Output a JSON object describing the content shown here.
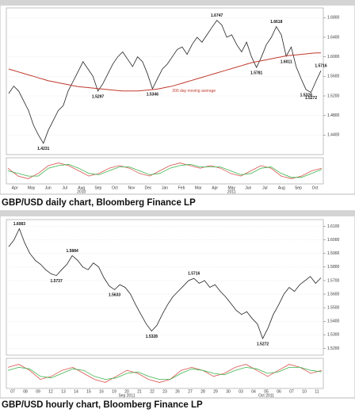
{
  "chart_data": [
    {
      "type": "line",
      "title": "GBP/USD daily chart, Bloomberg Finance LP",
      "xtick_labels": [
        "Apr",
        "May",
        "Jun",
        "Jul",
        "Aug",
        "Sep",
        "Oct",
        "Nov",
        "Dec",
        "Jan",
        "Feb",
        "Mar",
        "Apr",
        "May",
        "Jun",
        "Jul",
        "Aug",
        "Sep",
        "Oct"
      ],
      "xtick_sublabels": [
        null,
        null,
        null,
        null,
        "2010",
        null,
        null,
        null,
        null,
        null,
        null,
        null,
        null,
        "2011",
        null,
        null,
        null,
        null,
        null
      ],
      "ylim": [
        1.4,
        1.7
      ],
      "yticks": [
        {
          "value": 1.44,
          "label": "1.4400"
        },
        {
          "value": 1.48,
          "label": "1.4800"
        },
        {
          "value": 1.52,
          "label": "1.5200"
        },
        {
          "value": 1.56,
          "label": "1.5600"
        },
        {
          "value": 1.6,
          "label": "1.6000"
        },
        {
          "value": 1.64,
          "label": "1.6400"
        },
        {
          "value": 1.68,
          "label": "1.6800"
        }
      ],
      "grid": true,
      "series": [
        {
          "color": "#222222",
          "values": [
            1.525,
            1.54,
            1.53,
            1.51,
            1.49,
            1.46,
            1.44,
            1.4231,
            1.45,
            1.47,
            1.49,
            1.5,
            1.53,
            1.55,
            1.57,
            1.59,
            1.575,
            1.56,
            1.5297,
            1.545,
            1.565,
            1.585,
            1.6,
            1.61,
            1.595,
            1.58,
            1.6,
            1.59,
            1.565,
            1.5346,
            1.555,
            1.575,
            1.585,
            1.6,
            1.615,
            1.62,
            1.605,
            1.625,
            1.64,
            1.63,
            1.645,
            1.66,
            1.6747,
            1.665,
            1.64,
            1.645,
            1.625,
            1.61,
            1.63,
            1.6,
            1.5781,
            1.6,
            1.625,
            1.64,
            1.6618,
            1.645,
            1.6011,
            1.62,
            1.58,
            1.555,
            1.5328,
            1.5272,
            1.55,
            1.5716
          ],
          "value_labels": [
            null,
            null,
            null,
            null,
            null,
            null,
            null,
            "1.4231",
            null,
            null,
            null,
            null,
            null,
            null,
            null,
            null,
            null,
            null,
            "1.5297",
            null,
            null,
            null,
            null,
            null,
            null,
            null,
            null,
            null,
            null,
            "1.5346",
            null,
            null,
            null,
            null,
            null,
            null,
            null,
            null,
            null,
            null,
            null,
            null,
            "1.6747",
            null,
            null,
            null,
            null,
            null,
            null,
            null,
            "1.5781",
            null,
            null,
            null,
            "1.6618",
            null,
            "1.6011",
            null,
            null,
            null,
            "1.5328",
            "1.5272",
            null,
            "1.5716"
          ]
        },
        {
          "name": "200 day moving average",
          "color": "#c0392b",
          "values": [
            1.575,
            1.572,
            1.569,
            1.566,
            1.563,
            1.56,
            1.557,
            1.554,
            1.551,
            1.549,
            1.547,
            1.545,
            1.543,
            1.541,
            1.539,
            1.538,
            1.537,
            1.536,
            1.535,
            1.534,
            1.533,
            1.532,
            1.531,
            1.53,
            1.53,
            1.53,
            1.53,
            1.531,
            1.532,
            1.533,
            1.534,
            1.536,
            1.538,
            1.54,
            1.543,
            1.546,
            1.549,
            1.552,
            1.555,
            1.558,
            1.561,
            1.564,
            1.567,
            1.57,
            1.573,
            1.576,
            1.579,
            1.582,
            1.585,
            1.588,
            1.59,
            1.592,
            1.594,
            1.596,
            1.598,
            1.6,
            1.602,
            1.603,
            1.604,
            1.605,
            1.606,
            1.607,
            1.608,
            1.608
          ]
        }
      ],
      "osc_ylim": [
        -0.05,
        0.05
      ],
      "osc_series": [
        {
          "color": "#d9534f",
          "values": [
            0.01,
            -0.02,
            -0.03,
            -0.01,
            0.02,
            0.03,
            0.02,
            0,
            -0.02,
            -0.01,
            0.01,
            0.02,
            0.01,
            -0.01,
            -0.02,
            0,
            0.02,
            0.03,
            0.02,
            0.01,
            0.02,
            0.01,
            -0.01,
            -0.02,
            0,
            0.02,
            0.01,
            -0.02,
            -0.03,
            -0.02,
            0,
            0.01
          ]
        },
        {
          "color": "#3cb44b",
          "values": [
            0,
            -0.01,
            -0.02,
            -0.02,
            0.01,
            0.02,
            0.025,
            0.01,
            -0.01,
            -0.015,
            0,
            0.015,
            0.015,
            0,
            -0.015,
            -0.01,
            0.01,
            0.02,
            0.025,
            0.015,
            0.015,
            0.015,
            0,
            -0.015,
            -0.01,
            0.01,
            0.015,
            -0.01,
            -0.025,
            -0.025,
            -0.01,
            0.005
          ]
        }
      ]
    },
    {
      "type": "line",
      "title": "GBP/USD hourly chart, Bloomberg Finance LP",
      "xtick_labels": [
        "07",
        "08",
        "09",
        "12",
        "13",
        "14",
        "15",
        "16",
        "19",
        "20",
        "21",
        "22",
        "23",
        "26",
        "27",
        "28",
        "29",
        "30",
        "03",
        "04",
        "05",
        "06",
        "07",
        "10",
        "11"
      ],
      "xtick_sublabels": [
        null,
        null,
        null,
        null,
        null,
        null,
        null,
        null,
        null,
        "Sep 2011",
        null,
        null,
        null,
        null,
        null,
        null,
        null,
        null,
        null,
        null,
        "Oct 2011",
        null,
        null,
        null,
        null
      ],
      "ylim": [
        1.515,
        1.615
      ],
      "yticks": [
        {
          "value": 1.52,
          "label": "1.5200"
        },
        {
          "value": 1.53,
          "label": "1.5300"
        },
        {
          "value": 1.54,
          "label": "1.5400"
        },
        {
          "value": 1.55,
          "label": "1.5500"
        },
        {
          "value": 1.56,
          "label": "1.5600"
        },
        {
          "value": 1.57,
          "label": "1.5700"
        },
        {
          "value": 1.58,
          "label": "1.5800"
        },
        {
          "value": 1.59,
          "label": "1.5900"
        },
        {
          "value": 1.6,
          "label": "1.6000"
        },
        {
          "value": 1.61,
          "label": "1.6100"
        }
      ],
      "grid": true,
      "series": [
        {
          "color": "#222222",
          "values": [
            1.595,
            1.6,
            1.6083,
            1.598,
            1.59,
            1.585,
            1.582,
            1.578,
            1.575,
            1.5737,
            1.578,
            1.582,
            1.5884,
            1.585,
            1.58,
            1.578,
            1.583,
            1.58,
            1.572,
            1.566,
            1.5633,
            1.567,
            1.565,
            1.56,
            1.552,
            1.545,
            1.538,
            1.5328,
            1.537,
            1.545,
            1.552,
            1.558,
            1.562,
            1.566,
            1.57,
            1.5716,
            1.568,
            1.57,
            1.565,
            1.567,
            1.562,
            1.558,
            1.553,
            1.548,
            1.545,
            1.547,
            1.542,
            1.538,
            1.5272,
            1.535,
            1.545,
            1.552,
            1.56,
            1.565,
            1.562,
            1.567,
            1.57,
            1.573,
            1.568,
            1.572
          ],
          "value_labels": [
            null,
            null,
            "1.6083",
            null,
            null,
            null,
            null,
            null,
            null,
            "1.5737",
            null,
            null,
            "1.5884",
            null,
            null,
            null,
            null,
            null,
            null,
            null,
            "1.5633",
            null,
            null,
            null,
            null,
            null,
            null,
            "1.5328",
            null,
            null,
            null,
            null,
            null,
            null,
            null,
            "1.5716",
            null,
            null,
            null,
            null,
            null,
            null,
            null,
            null,
            null,
            null,
            null,
            null,
            "1.5272",
            null,
            null,
            null,
            null,
            null,
            null,
            null,
            null,
            null,
            null,
            null
          ]
        }
      ],
      "osc_ylim": [
        -0.05,
        0.05
      ],
      "osc_series": [
        {
          "color": "#d9534f",
          "values": [
            0.02,
            0.03,
            0.01,
            -0.02,
            -0.01,
            0.01,
            0.02,
            0,
            -0.02,
            -0.03,
            -0.01,
            0.01,
            0,
            -0.02,
            -0.03,
            -0.02,
            0.01,
            0.02,
            0.01,
            -0.01,
            0,
            0.02,
            0.03,
            0.01,
            -0.01,
            0.01,
            0.03,
            0.02,
            0,
            0.01
          ]
        },
        {
          "color": "#3cb44b",
          "values": [
            0.01,
            0.02,
            0.015,
            -0.01,
            -0.015,
            0,
            0.015,
            0.01,
            -0.01,
            -0.02,
            -0.015,
            0,
            0.005,
            -0.01,
            -0.02,
            -0.02,
            0,
            0.015,
            0.01,
            0,
            -0.005,
            0.01,
            0.02,
            0.015,
            0,
            0.005,
            0.02,
            0.02,
            0.01,
            0.005
          ]
        }
      ]
    }
  ]
}
